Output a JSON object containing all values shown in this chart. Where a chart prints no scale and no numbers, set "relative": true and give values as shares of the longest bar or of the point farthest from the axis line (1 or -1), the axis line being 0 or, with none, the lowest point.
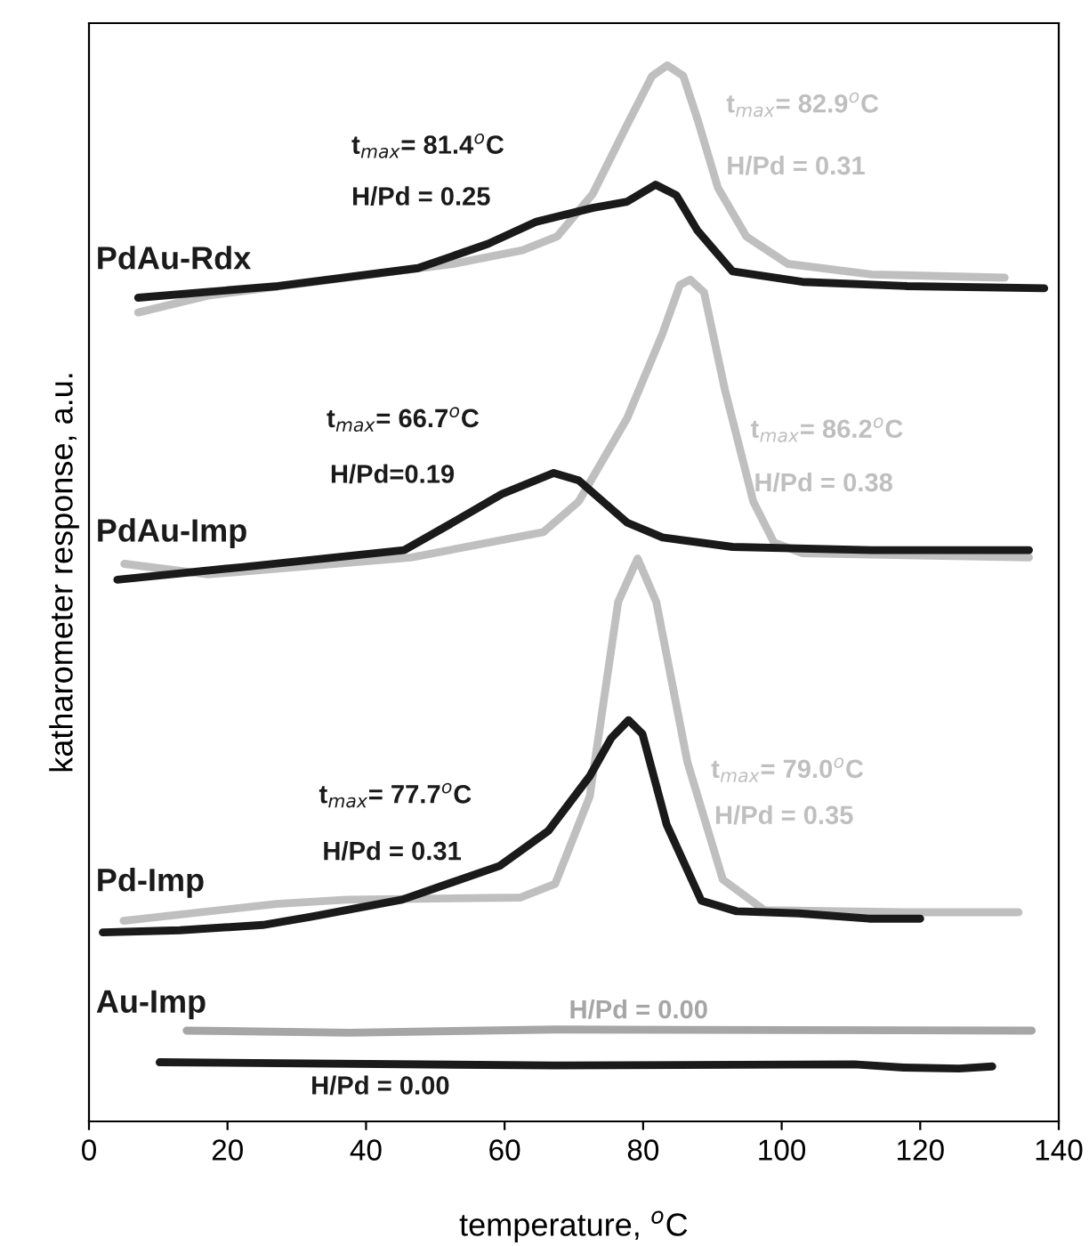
{
  "chart_data": {
    "type": "line",
    "relative": true,
    "xlabel": "temperature, $^{o}$C",
    "ylabel": "katharometer response, a.u.",
    "xlim": [
      0,
      140
    ],
    "xticks": [
      0,
      20,
      40,
      60,
      80,
      100,
      120,
      140
    ],
    "grid": false,
    "marker": "none",
    "line_style": "solid",
    "series": [
      {
        "color": "#bfbfbf",
        "x": [
          7.1,
          17.2,
          37.4,
          52.5,
          62.6,
          67.6,
          72.7,
          77.7,
          81.3,
          83.5,
          85.8,
          87.8,
          90.8,
          94.9,
          100.9,
          113.0,
          132.2
        ],
        "values": [
          0.766,
          0.782,
          0.799,
          0.812,
          0.825,
          0.838,
          0.878,
          0.944,
          0.99,
          1.0,
          0.99,
          0.95,
          0.884,
          0.838,
          0.812,
          0.802,
          0.799
        ]
      },
      {
        "color": "#1a1a1a",
        "x": [
          7.1,
          27.3,
          47.5,
          57.6,
          64.6,
          72.7,
          77.7,
          81.8,
          84.8,
          87.8,
          92.9,
          103.0,
          118.1,
          137.9
        ],
        "values": [
          0.78,
          0.791,
          0.808,
          0.831,
          0.852,
          0.865,
          0.871,
          0.887,
          0.877,
          0.844,
          0.805,
          0.795,
          0.791,
          0.789
        ]
      },
      {
        "color": "#bfbfbf",
        "x": [
          5.1,
          17.2,
          46.5,
          65.6,
          70.7,
          77.7,
          82.8,
          85.3,
          86.8,
          88.8,
          91.8,
          95.9,
          98.9,
          103.0,
          135.7
        ],
        "values": [
          0.528,
          0.518,
          0.534,
          0.558,
          0.587,
          0.666,
          0.746,
          0.792,
          0.797,
          0.785,
          0.693,
          0.587,
          0.548,
          0.538,
          0.534
        ]
      },
      {
        "color": "#1a1a1a",
        "x": [
          4.1,
          22.3,
          45.5,
          52.5,
          59.6,
          67.1,
          70.7,
          77.7,
          82.8,
          92.9,
          113.0,
          135.7
        ],
        "values": [
          0.513,
          0.525,
          0.541,
          0.567,
          0.594,
          0.614,
          0.607,
          0.567,
          0.553,
          0.544,
          0.541,
          0.541
        ]
      },
      {
        "color": "#bfbfbf",
        "x": [
          5.0,
          27.1,
          37.2,
          62.3,
          67.3,
          72.3,
          76.4,
          79.2,
          81.9,
          86.4,
          91.5,
          97.5,
          117.6,
          134.2
        ],
        "values": [
          0.19,
          0.206,
          0.21,
          0.212,
          0.225,
          0.308,
          0.492,
          0.533,
          0.492,
          0.34,
          0.229,
          0.2,
          0.198,
          0.198
        ]
      },
      {
        "color": "#1a1a1a",
        "x": [
          2.0,
          13.1,
          25.1,
          32.2,
          45.2,
          59.3,
          66.3,
          72.3,
          75.4,
          77.9,
          79.9,
          83.4,
          88.4,
          93.5,
          102.5,
          112.6,
          120.0
        ],
        "values": [
          0.179,
          0.181,
          0.186,
          0.194,
          0.21,
          0.242,
          0.275,
          0.327,
          0.363,
          0.38,
          0.367,
          0.281,
          0.209,
          0.199,
          0.197,
          0.192,
          0.192
        ]
      },
      {
        "color": "#a6a6a6",
        "x": [
          14.1,
          37.7,
          67.3,
          136.1
        ],
        "values": [
          0.086,
          0.084,
          0.087,
          0.086
        ]
      },
      {
        "color": "#1a1a1a",
        "x": [
          10.2,
          67.3,
          110.5,
          117.6,
          125.6,
          130.4
        ],
        "values": [
          0.056,
          0.053,
          0.054,
          0.051,
          0.05,
          0.052
        ]
      }
    ],
    "annotations": [
      "PdAu-Rdx",
      "t$_{max}$= 81.4$^{o}$C",
      "H/Pd = 0.25",
      "t$_{max}$= 82.9$^{o}$C",
      "H/Pd = 0.31",
      "PdAu-Imp",
      "t$_{max}$= 66.7$^{o}$C",
      "H/Pd=0.19",
      "t$_{max}$= 86.2$^{o}$C",
      "H/Pd = 0.38",
      "Pd-Imp",
      "t$_{max}$= 77.7$^{o}$C",
      "H/Pd = 0.31",
      "t$_{max}$= 79.0$^{o}$C",
      "H/Pd = 0.35",
      "Au-Imp",
      "H/Pd = 0.00",
      "H/Pd = 0.00"
    ]
  }
}
